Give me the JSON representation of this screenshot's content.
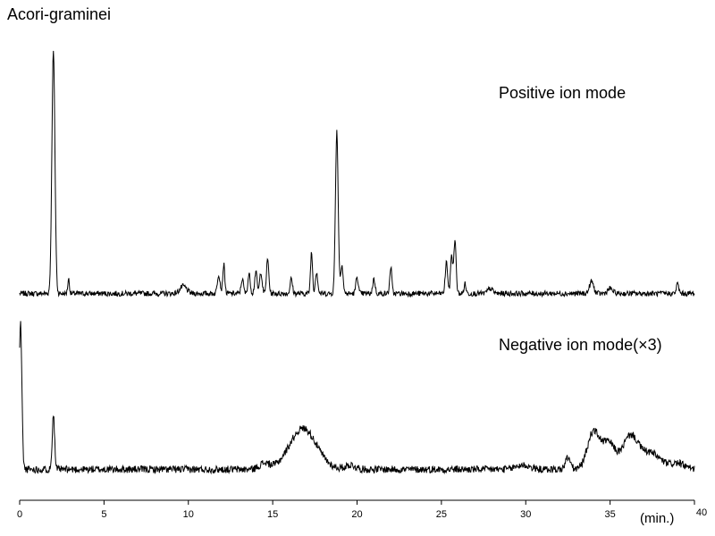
{
  "chart_data": {
    "type": "line",
    "title": "Acori-graminei",
    "xlabel": "(min.)",
    "x_ticks": [
      0,
      5,
      10,
      15,
      20,
      25,
      30,
      35,
      40
    ],
    "xlim": [
      0,
      40
    ],
    "grid": false,
    "legend": "none",
    "line_color": "#000000",
    "series": [
      {
        "name": "Positive ion mode",
        "ylim": [
          0,
          100
        ],
        "baseline": 2,
        "peaks": [
          {
            "t": 2.0,
            "h": 100,
            "w": 0.09
          },
          {
            "t": 2.9,
            "h": 6,
            "w": 0.05
          },
          {
            "t": 9.7,
            "h": 3,
            "w": 0.2
          },
          {
            "t": 11.8,
            "h": 8,
            "w": 0.08
          },
          {
            "t": 12.1,
            "h": 12,
            "w": 0.06
          },
          {
            "t": 13.2,
            "h": 6,
            "w": 0.07
          },
          {
            "t": 13.6,
            "h": 8,
            "w": 0.07
          },
          {
            "t": 14.0,
            "h": 9,
            "w": 0.07
          },
          {
            "t": 14.3,
            "h": 9,
            "w": 0.07
          },
          {
            "t": 14.7,
            "h": 14,
            "w": 0.07
          },
          {
            "t": 16.1,
            "h": 6,
            "w": 0.07
          },
          {
            "t": 17.3,
            "h": 17,
            "w": 0.06
          },
          {
            "t": 17.6,
            "h": 9,
            "w": 0.07
          },
          {
            "t": 18.8,
            "h": 67,
            "w": 0.08
          },
          {
            "t": 19.1,
            "h": 12,
            "w": 0.07
          },
          {
            "t": 20.0,
            "h": 7,
            "w": 0.07
          },
          {
            "t": 21.0,
            "h": 6,
            "w": 0.07
          },
          {
            "t": 22.0,
            "h": 11,
            "w": 0.06
          },
          {
            "t": 25.3,
            "h": 13,
            "w": 0.07
          },
          {
            "t": 25.6,
            "h": 16,
            "w": 0.06
          },
          {
            "t": 25.8,
            "h": 22,
            "w": 0.07
          },
          {
            "t": 26.4,
            "h": 4,
            "w": 0.06
          },
          {
            "t": 27.9,
            "h": 2,
            "w": 0.15
          },
          {
            "t": 33.9,
            "h": 5,
            "w": 0.12
          },
          {
            "t": 35.0,
            "h": 2,
            "w": 0.15
          },
          {
            "t": 39.0,
            "h": 4,
            "w": 0.07
          }
        ]
      },
      {
        "name": "Negative ion mode(×3)",
        "ylim": [
          0,
          100
        ],
        "baseline": 4,
        "peaks": [
          {
            "t": 0.05,
            "h": 100,
            "w": 0.08
          },
          {
            "t": 2.0,
            "h": 38,
            "w": 0.07
          },
          {
            "t": 14.5,
            "h": 4,
            "w": 0.3
          },
          {
            "t": 16.8,
            "h": 28,
            "w": 0.8
          },
          {
            "t": 19.6,
            "h": 3,
            "w": 0.3
          },
          {
            "t": 29.8,
            "h": 3,
            "w": 0.4
          },
          {
            "t": 32.5,
            "h": 8,
            "w": 0.15
          },
          {
            "t": 34.0,
            "h": 25,
            "w": 0.35
          },
          {
            "t": 34.9,
            "h": 18,
            "w": 0.4
          },
          {
            "t": 36.2,
            "h": 22,
            "w": 0.45
          },
          {
            "t": 37.4,
            "h": 11,
            "w": 0.6
          },
          {
            "t": 39.0,
            "h": 4,
            "w": 0.4
          }
        ]
      }
    ]
  }
}
